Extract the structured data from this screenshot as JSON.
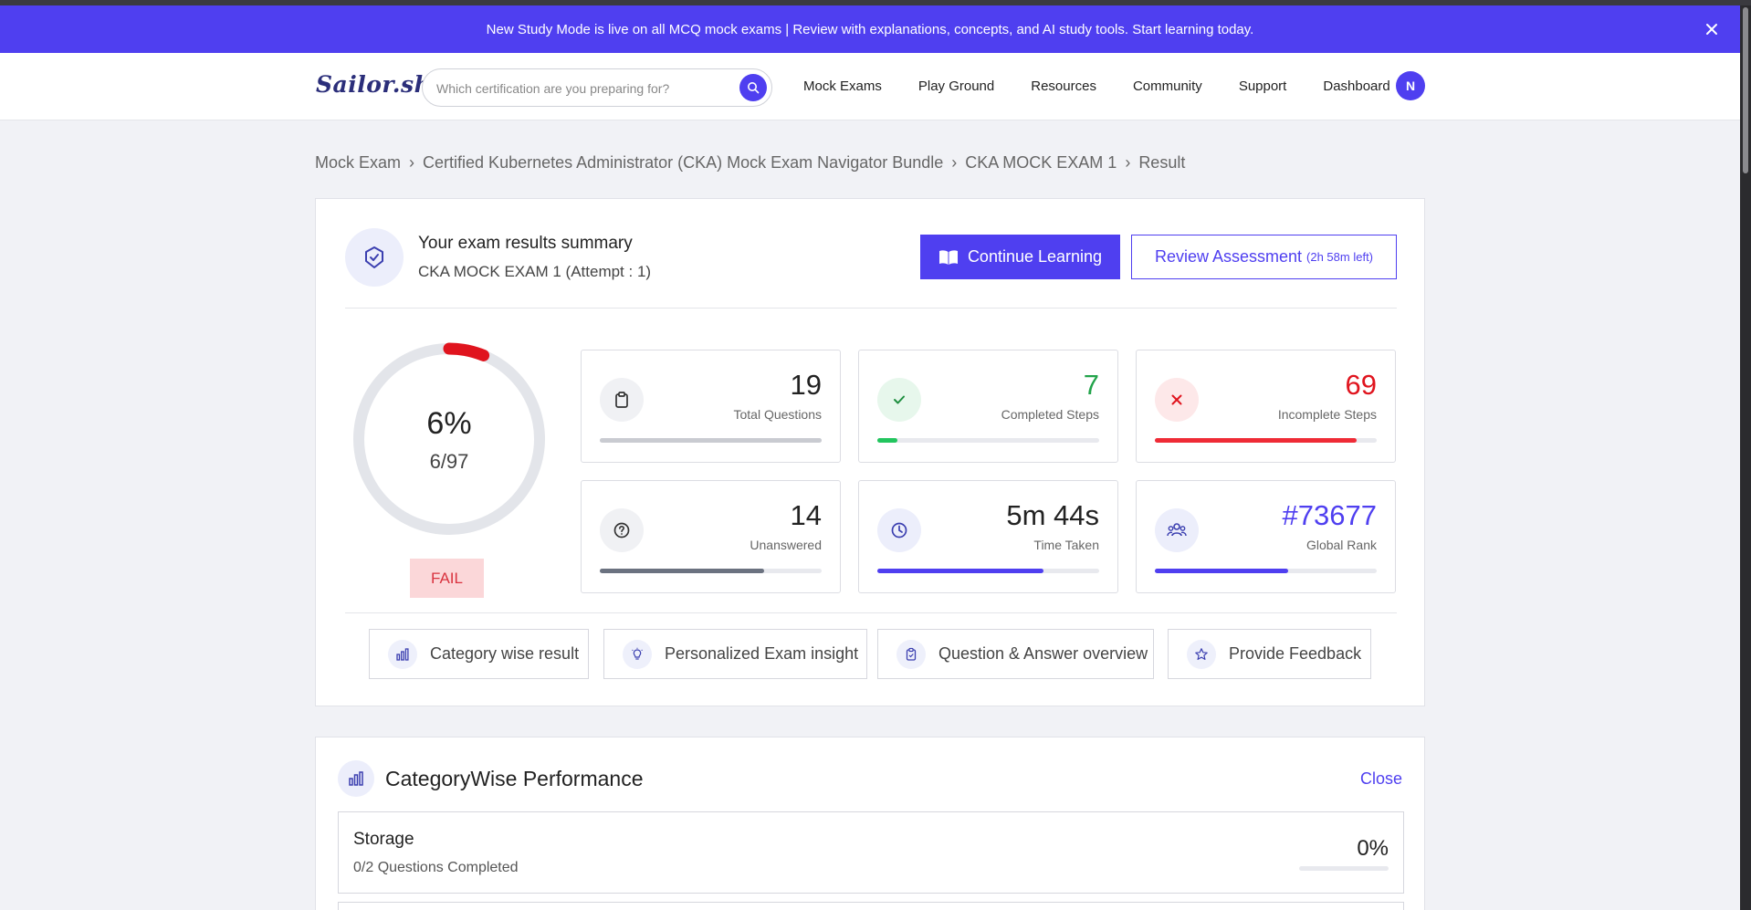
{
  "banner": {
    "text": "New Study Mode is live on all MCQ mock exams | Review with explanations, concepts, and AI study tools. Start learning today."
  },
  "nav": {
    "logo": "Sailor.sh",
    "search_placeholder": "Which certification are you preparing for?",
    "links": [
      "Mock Exams",
      "Play Ground",
      "Resources",
      "Community",
      "Support",
      "Dashboard"
    ],
    "avatar_initial": "N"
  },
  "breadcrumb": [
    "Mock Exam",
    "Certified Kubernetes Administrator (CKA) Mock Exam Navigator Bundle",
    "CKA MOCK EXAM 1",
    "Result"
  ],
  "summary": {
    "title": "Your exam results summary",
    "subtitle": "CKA MOCK EXAM 1 (Attempt : 1)",
    "continue_label": "Continue Learning",
    "review_label": "Review Assessment",
    "review_time": "(2h 58m left)"
  },
  "score": {
    "percent_text": "6%",
    "fraction_text": "6/97",
    "fraction": 0.062,
    "status": "FAIL",
    "colors": {
      "ring_track": "#e3e5ea",
      "ring_fill": "#e0141e"
    }
  },
  "stats": [
    {
      "value": "19",
      "label": "Total Questions",
      "icon": "clipboard-icon",
      "progress": 1.0,
      "color": "#222222",
      "bar_color": "#c9cbd1",
      "icon_bg": "#f0f1f4"
    },
    {
      "value": "7",
      "label": "Completed Steps",
      "icon": "check-icon",
      "progress": 0.09,
      "color": "#22a34a",
      "bar_color": "#22c55e",
      "icon_bg": "#e7f7ec"
    },
    {
      "value": "69",
      "label": "Incomplete Steps",
      "icon": "x-icon",
      "progress": 0.91,
      "color": "#e0141e",
      "bar_color": "#ef2b36",
      "icon_bg": "#fde8e9"
    },
    {
      "value": "14",
      "label": "Unanswered",
      "icon": "question-icon",
      "progress": 0.74,
      "color": "#222222",
      "bar_color": "#6b7280",
      "icon_bg": "#f0f1f4"
    },
    {
      "value": "5m 44s",
      "label": "Time Taken",
      "icon": "clock-icon",
      "progress": 0.75,
      "color": "#222222",
      "bar_color": "#4f3ff0",
      "icon_bg": "#eceefb"
    },
    {
      "value": "#73677",
      "label": "Global Rank",
      "icon": "users-icon",
      "progress": 0.6,
      "color": "#4f3ff0",
      "bar_color": "#4f3ff0",
      "icon_bg": "#eceefb"
    }
  ],
  "tabs": [
    {
      "label": "Category wise result",
      "icon": "bar-chart-icon"
    },
    {
      "label": "Personalized Exam insight",
      "icon": "lightbulb-icon"
    },
    {
      "label": "Question & Answer overview",
      "icon": "clipboard-check-icon"
    },
    {
      "label": "Provide Feedback",
      "icon": "star-icon"
    }
  ],
  "category_performance": {
    "title": "CategoryWise Performance",
    "close_label": "Close",
    "rows": [
      {
        "name": "Storage",
        "completed": "0/2 Questions Completed",
        "percent": "0%"
      }
    ]
  },
  "colors": {
    "accent": "#4f3ff0",
    "page_bg": "#f1f2f6"
  }
}
